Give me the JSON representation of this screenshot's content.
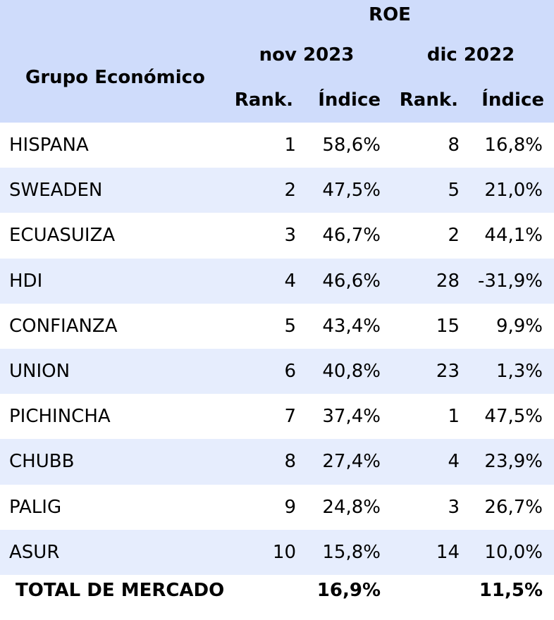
{
  "header": {
    "metric": "ROE",
    "group_label": "Grupo Económico",
    "period_1": "nov 2023",
    "period_2": "dic 2022",
    "rank_label": "Rank.",
    "index_label": "Índice"
  },
  "chart_data": {
    "type": "table",
    "title": "ROE",
    "columns": [
      "Grupo Económico",
      "nov 2023 Rank.",
      "nov 2023 Índice",
      "dic 2022 Rank.",
      "dic 2022 Índice"
    ],
    "rows": [
      {
        "name": "HISPANA",
        "rank_1": "1",
        "index_1": "58,6%",
        "rank_2": "8",
        "index_2": "16,8%"
      },
      {
        "name": "SWEADEN",
        "rank_1": "2",
        "index_1": "47,5%",
        "rank_2": "5",
        "index_2": "21,0%"
      },
      {
        "name": "ECUASUIZA",
        "rank_1": "3",
        "index_1": "46,7%",
        "rank_2": "2",
        "index_2": "44,1%"
      },
      {
        "name": "HDI",
        "rank_1": "4",
        "index_1": "46,6%",
        "rank_2": "28",
        "index_2": "-31,9%"
      },
      {
        "name": "CONFIANZA",
        "rank_1": "5",
        "index_1": "43,4%",
        "rank_2": "15",
        "index_2": "9,9%"
      },
      {
        "name": "UNION",
        "rank_1": "6",
        "index_1": "40,8%",
        "rank_2": "23",
        "index_2": "1,3%"
      },
      {
        "name": "PICHINCHA",
        "rank_1": "7",
        "index_1": "37,4%",
        "rank_2": "1",
        "index_2": "47,5%"
      },
      {
        "name": "CHUBB",
        "rank_1": "8",
        "index_1": "27,4%",
        "rank_2": "4",
        "index_2": "23,9%"
      },
      {
        "name": "PALIG",
        "rank_1": "9",
        "index_1": "24,8%",
        "rank_2": "3",
        "index_2": "26,7%"
      },
      {
        "name": "ASUR",
        "rank_1": "10",
        "index_1": "15,8%",
        "rank_2": "14",
        "index_2": "10,0%"
      }
    ],
    "total": {
      "name": "TOTAL DE MERCADO",
      "index_1": "16,9%",
      "index_2": "11,5%"
    }
  },
  "colors": {
    "header_bg": "#cfdcfb",
    "stripe_bg": "#e6edfd"
  }
}
